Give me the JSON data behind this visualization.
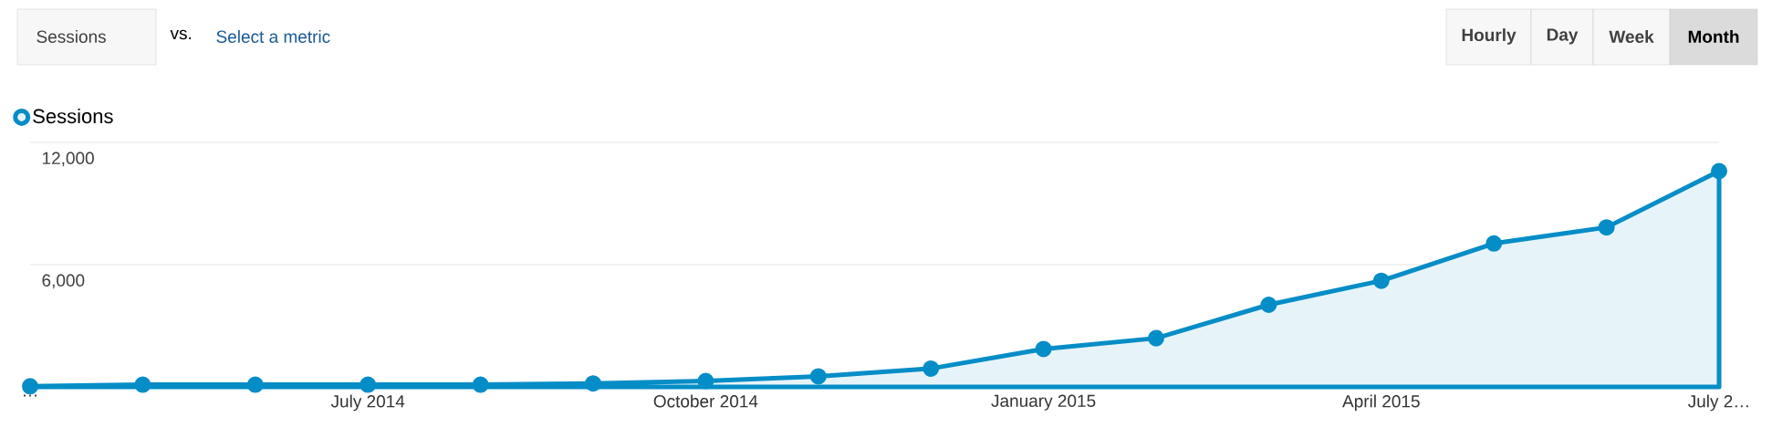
{
  "chart_data": {
    "type": "area",
    "categories": [
      "…",
      null,
      null,
      "July 2014",
      null,
      null,
      "October 2014",
      null,
      null,
      "January 2015",
      null,
      null,
      "April 2015",
      null,
      null,
      "July 2…"
    ],
    "series": [
      {
        "name": "Sessions",
        "color": "#058dc7",
        "values": [
          30,
          110,
          110,
          110,
          110,
          170,
          290,
          520,
          900,
          1860,
          2390,
          4030,
          5210,
          7040,
          7830,
          10590
        ]
      }
    ],
    "ylim": [
      0,
      12000
    ],
    "yticks": [
      {
        "value": 6000,
        "label": "6,000"
      },
      {
        "value": 12000,
        "label": "12,000"
      }
    ],
    "grid": "y",
    "legend": "top left",
    "marker": "circle",
    "annotations": [
      "Sessions",
      "vs.",
      "Select a metric",
      "Hourly",
      "Day",
      "Week",
      "Month"
    ]
  }
}
